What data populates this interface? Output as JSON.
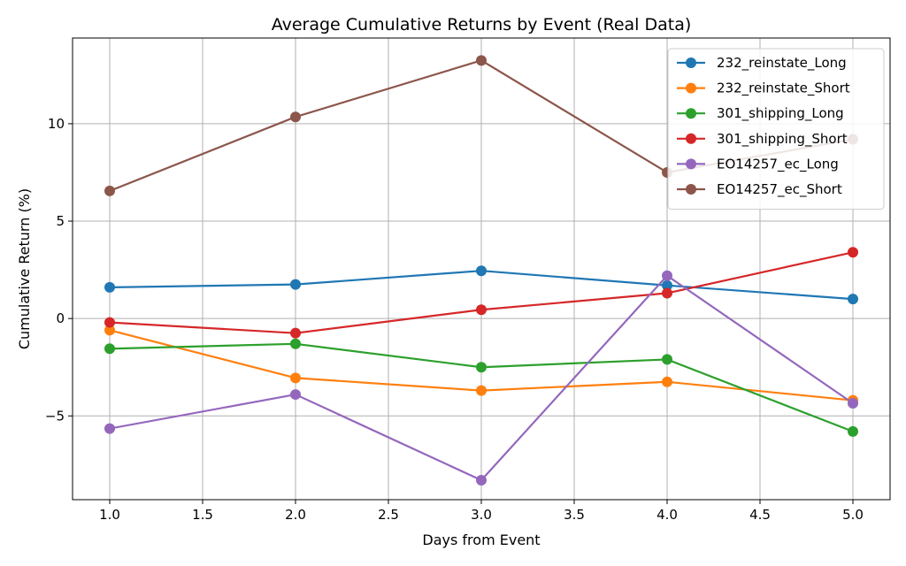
{
  "chart_data": {
    "type": "line",
    "title": "Average Cumulative Returns by Event (Real Data)",
    "xlabel": "Days from Event",
    "ylabel": "Cumulative Return (%)",
    "xlim": [
      0.8,
      5.2
    ],
    "ylim": [
      -9.3,
      14.4
    ],
    "xticks": [
      1.0,
      1.5,
      2.0,
      2.5,
      3.0,
      3.5,
      4.0,
      4.5,
      5.0
    ],
    "xtick_labels": [
      "1.0",
      "1.5",
      "2.0",
      "2.5",
      "3.0",
      "3.5",
      "4.0",
      "4.5",
      "5.0"
    ],
    "yticks": [
      -5,
      0,
      5,
      10
    ],
    "ytick_labels": [
      "−5",
      "0",
      "5",
      "10"
    ],
    "grid": true,
    "legend_position": "top-right",
    "x": [
      1,
      2,
      3,
      4,
      5
    ],
    "series": [
      {
        "name": "232_reinstate_Long",
        "color": "#1f77b4",
        "values": [
          1.6,
          1.75,
          2.45,
          1.7,
          1.0
        ]
      },
      {
        "name": "232_reinstate_Short",
        "color": "#ff7f0e",
        "values": [
          -0.6,
          -3.05,
          -3.7,
          -3.25,
          -4.2
        ]
      },
      {
        "name": "301_shipping_Long",
        "color": "#2ca02c",
        "values": [
          -1.55,
          -1.3,
          -2.5,
          -2.1,
          -5.8
        ]
      },
      {
        "name": "301_shipping_Short",
        "color": "#d62728",
        "values": [
          -0.2,
          -0.75,
          0.45,
          1.3,
          3.4
        ]
      },
      {
        "name": "EO14257_ec_Long",
        "color": "#9467bd",
        "values": [
          -5.65,
          -3.9,
          -8.3,
          2.2,
          -4.35
        ]
      },
      {
        "name": "EO14257_ec_Short",
        "color": "#8c564b",
        "values": [
          6.55,
          10.35,
          13.25,
          7.5,
          9.2
        ]
      }
    ]
  }
}
